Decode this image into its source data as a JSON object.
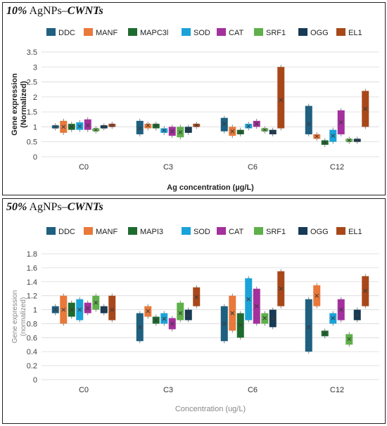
{
  "chart_data": [
    {
      "type": "box",
      "title_pct": "10%",
      "title_mid": " AgNPs–",
      "title_cw": "CWNTs",
      "xlabel": "Ag concentration (µg/L)",
      "ylabel_line1": "Gene expression",
      "ylabel_line2": "(Normalized)",
      "ylim": [
        0,
        3.5
      ],
      "yticks": [
        "0",
        "0.5",
        "1",
        "1.5",
        "2",
        "2.5",
        "3",
        "3.5"
      ],
      "categories": [
        "C0",
        "C3",
        "C6",
        "C12"
      ],
      "series": [
        {
          "name": "DDC",
          "color": "#1f5f7f",
          "boxes": [
            {
              "lo": 0.95,
              "hi": 1.05,
              "mean": 1.0
            },
            {
              "lo": 0.75,
              "hi": 1.2,
              "mean": 0.95
            },
            {
              "lo": 0.85,
              "hi": 1.3,
              "mean": 1.1
            },
            {
              "lo": 0.75,
              "hi": 1.7,
              "mean": 1.1
            }
          ]
        },
        {
          "name": "MANF",
          "color": "#e8793a",
          "boxes": [
            {
              "lo": 0.8,
              "hi": 1.2,
              "mean": 1.0
            },
            {
              "lo": 0.95,
              "hi": 1.1,
              "mean": 1.05
            },
            {
              "lo": 0.7,
              "hi": 1.0,
              "mean": 0.85
            },
            {
              "lo": 0.6,
              "hi": 0.75,
              "mean": 0.68
            }
          ]
        },
        {
          "name": "MAPC3l",
          "color": "#1e6b2f",
          "boxes": [
            {
              "lo": 0.9,
              "hi": 1.1,
              "mean": 1.0
            },
            {
              "lo": 0.95,
              "hi": 1.1,
              "mean": 1.05
            },
            {
              "lo": 0.75,
              "hi": 0.9,
              "mean": 0.82
            },
            {
              "lo": 0.4,
              "hi": 0.55,
              "mean": 0.48
            }
          ]
        },
        {
          "name": "SOD",
          "color": "#1aa3d9",
          "boxes": [
            {
              "lo": 0.9,
              "hi": 1.15,
              "mean": 1.02
            },
            {
              "lo": 0.8,
              "hi": 0.95,
              "mean": 0.88
            },
            {
              "lo": 0.95,
              "hi": 1.1,
              "mean": 1.02
            },
            {
              "lo": 0.5,
              "hi": 0.9,
              "mean": 0.7
            }
          ]
        },
        {
          "name": "CAT",
          "color": "#a3309c",
          "boxes": [
            {
              "lo": 0.9,
              "hi": 1.25,
              "mean": 1.05
            },
            {
              "lo": 0.7,
              "hi": 1.0,
              "mean": 0.85
            },
            {
              "lo": 1.0,
              "hi": 1.2,
              "mean": 1.1
            },
            {
              "lo": 0.75,
              "hi": 1.55,
              "mean": 1.15
            }
          ]
        },
        {
          "name": "SRF1",
          "color": "#5fb04a",
          "boxes": [
            {
              "lo": 0.85,
              "hi": 0.95,
              "mean": 0.9
            },
            {
              "lo": 0.65,
              "hi": 1.0,
              "mean": 0.82
            },
            {
              "lo": 0.85,
              "hi": 0.95,
              "mean": 0.9
            },
            {
              "lo": 0.5,
              "hi": 0.6,
              "mean": 0.55
            }
          ]
        },
        {
          "name": "OGG",
          "color": "#183a55",
          "boxes": [
            {
              "lo": 0.95,
              "hi": 1.05,
              "mean": 1.0
            },
            {
              "lo": 0.8,
              "hi": 1.0,
              "mean": 0.9
            },
            {
              "lo": 0.75,
              "hi": 0.9,
              "mean": 0.82
            },
            {
              "lo": 0.5,
              "hi": 0.6,
              "mean": 0.55
            }
          ]
        },
        {
          "name": "EL1",
          "color": "#a8481a",
          "boxes": [
            {
              "lo": 1.0,
              "hi": 1.1,
              "mean": 1.05
            },
            {
              "lo": 1.0,
              "hi": 1.1,
              "mean": 1.05
            },
            {
              "lo": 0.95,
              "hi": 3.0,
              "mean": 1.9
            },
            {
              "lo": 1.0,
              "hi": 2.2,
              "mean": 1.6
            }
          ]
        }
      ]
    },
    {
      "type": "box",
      "title_pct": "50%",
      "title_mid": " AgNPs–",
      "title_cw": "CWNTs",
      "xlabel": "Concentration (ug/L)",
      "ylabel_line1": "Gene expression",
      "ylabel_line2": "(normalized)",
      "ylim": [
        0,
        1.8
      ],
      "yticks": [
        "0",
        "0.2",
        "0.4",
        "0.6",
        "0.8",
        "1",
        "1.2",
        "1.4",
        "1.6",
        "1.8"
      ],
      "categories": [
        "C0",
        "C3",
        "C6",
        "C12"
      ],
      "series": [
        {
          "name": "DDC",
          "color": "#1f5f7f",
          "boxes": [
            {
              "lo": 0.95,
              "hi": 1.05,
              "mean": 1.0
            },
            {
              "lo": 0.55,
              "hi": 0.95,
              "mean": 0.75
            },
            {
              "lo": 0.55,
              "hi": 1.05,
              "mean": 0.8
            },
            {
              "lo": 0.4,
              "hi": 1.15,
              "mean": 0.75
            }
          ]
        },
        {
          "name": "MANF",
          "color": "#e8793a",
          "boxes": [
            {
              "lo": 0.8,
              "hi": 1.2,
              "mean": 1.0
            },
            {
              "lo": 0.9,
              "hi": 1.05,
              "mean": 0.98
            },
            {
              "lo": 0.7,
              "hi": 1.2,
              "mean": 0.95
            },
            {
              "lo": 1.05,
              "hi": 1.35,
              "mean": 1.2
            }
          ]
        },
        {
          "name": "MAPI3",
          "color": "#1e6b2f",
          "boxes": [
            {
              "lo": 0.9,
              "hi": 1.1,
              "mean": 1.0
            },
            {
              "lo": 0.8,
              "hi": 0.9,
              "mean": 0.85
            },
            {
              "lo": 0.6,
              "hi": 0.95,
              "mean": 0.78
            },
            {
              "lo": 0.62,
              "hi": 0.7,
              "mean": 0.66
            }
          ]
        },
        {
          "name": "SOD",
          "color": "#1aa3d9",
          "boxes": [
            {
              "lo": 0.85,
              "hi": 1.15,
              "mean": 1.0
            },
            {
              "lo": 0.8,
              "hi": 0.95,
              "mean": 0.87
            },
            {
              "lo": 0.85,
              "hi": 1.45,
              "mean": 1.15
            },
            {
              "lo": 0.8,
              "hi": 0.95,
              "mean": 0.88
            }
          ]
        },
        {
          "name": "CAT",
          "color": "#a3309c",
          "boxes": [
            {
              "lo": 0.95,
              "hi": 1.1,
              "mean": 1.02
            },
            {
              "lo": 0.72,
              "hi": 0.88,
              "mean": 0.8
            },
            {
              "lo": 0.8,
              "hi": 1.3,
              "mean": 1.05
            },
            {
              "lo": 0.85,
              "hi": 1.15,
              "mean": 1.0
            }
          ]
        },
        {
          "name": "SRF1",
          "color": "#5fb04a",
          "boxes": [
            {
              "lo": 1.0,
              "hi": 1.2,
              "mean": 1.1
            },
            {
              "lo": 0.85,
              "hi": 1.1,
              "mean": 0.95
            },
            {
              "lo": 0.8,
              "hi": 0.95,
              "mean": 0.88
            },
            {
              "lo": 0.5,
              "hi": 0.65,
              "mean": 0.58
            }
          ]
        },
        {
          "name": "OGG",
          "color": "#183a55",
          "boxes": [
            {
              "lo": 0.95,
              "hi": 1.05,
              "mean": 1.0
            },
            {
              "lo": 0.85,
              "hi": 1.0,
              "mean": 0.92
            },
            {
              "lo": 0.75,
              "hi": 1.0,
              "mean": 0.87
            },
            {
              "lo": 0.85,
              "hi": 1.0,
              "mean": 0.92
            }
          ]
        },
        {
          "name": "EL1",
          "color": "#a8481a",
          "boxes": [
            {
              "lo": 0.85,
              "hi": 1.2,
              "mean": 1.0
            },
            {
              "lo": 1.05,
              "hi": 1.32,
              "mean": 1.18
            },
            {
              "lo": 1.05,
              "hi": 1.55,
              "mean": 1.3
            },
            {
              "lo": 1.05,
              "hi": 1.48,
              "mean": 1.27
            }
          ]
        }
      ]
    }
  ]
}
